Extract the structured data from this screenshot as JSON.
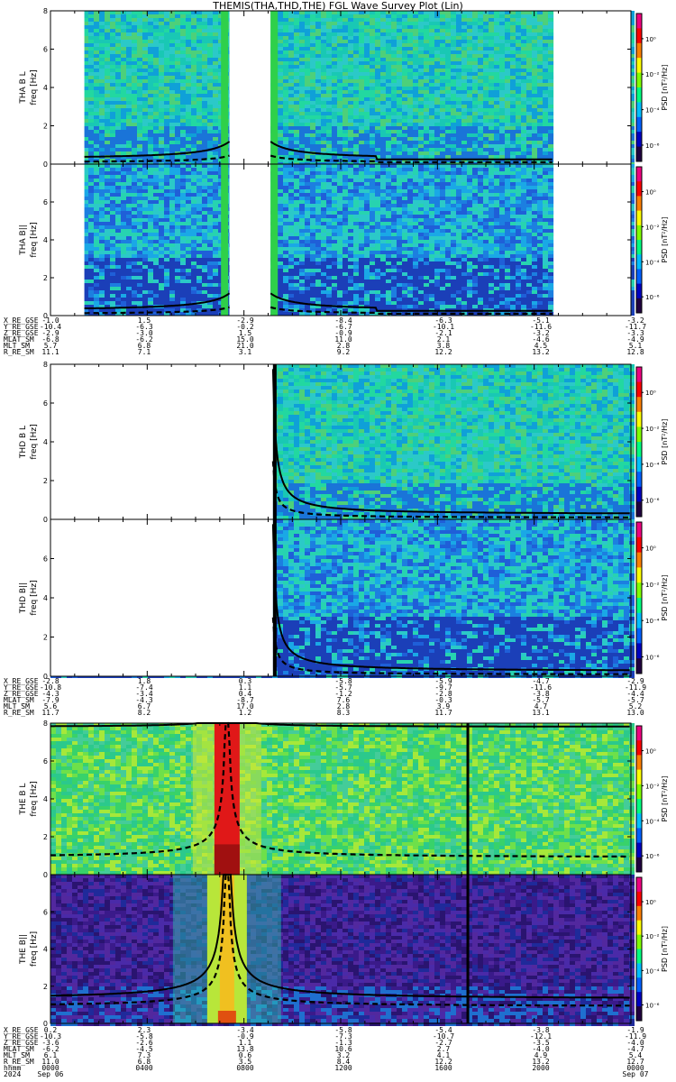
{
  "title": "THEMIS(THA,THD,THE) FGL Wave Survey Plot (Lin)",
  "colors": {
    "black_curve": "#000000"
  },
  "colorbar": {
    "label": "PSD [nT²/Hz]",
    "ticks": [
      "10⁰",
      "10⁻²",
      "10⁻⁴",
      "10⁻⁶"
    ]
  },
  "chart_data": [
    {
      "type": "heatmap",
      "probe": "THA",
      "panels": [
        {
          "name": "THA B L",
          "ylabel": "THA B L\nfreq [Hz]",
          "yticks": [
            0,
            2,
            4,
            6,
            8
          ],
          "ylim": [
            0,
            8
          ],
          "data_gaps_hours": [
            [
              0,
              1.4
            ],
            [
              7.4,
              9.1
            ],
            [
              20.8,
              24
            ]
          ],
          "base": "cyan-green"
        },
        {
          "name": "THA B||",
          "ylabel": "THA B||\nfreq [Hz]",
          "yticks": [
            0,
            2,
            4,
            6,
            8
          ],
          "ylim": [
            0,
            8
          ],
          "data_gaps_hours": [
            [
              0,
              1.4
            ],
            [
              7.4,
              9.1
            ],
            [
              20.8,
              24
            ]
          ],
          "base": "cyan-blue"
        }
      ],
      "xlim_hours": [
        0,
        24
      ],
      "ephemeris": {
        "labels": [
          "X_RE_GSE",
          "Y_RE_GSE",
          "Z_RE_GSE",
          "MLAT_SM",
          "MLT_SM",
          "R_RE_SM"
        ],
        "values": [
          [
            "-1.0",
            "1.5",
            "-2.9",
            "-8.4",
            "-6.3",
            "-5.1",
            "-3.2"
          ],
          [
            "-10.4",
            "-6.3",
            "-0.2",
            "-6.7",
            "-10.1",
            "-11.6",
            "-11.7"
          ],
          [
            "-2.9",
            "-3.0",
            "1.5",
            "-0.9",
            "-2.1",
            "-3.2",
            "-3.3"
          ],
          [
            "-6.8",
            "-6.2",
            "15.0",
            "11.0",
            "2.1",
            "-4.6",
            "-4.9"
          ],
          [
            "5.7",
            "6.8",
            "21.0",
            "2.8",
            "3.8",
            "4.5",
            "5.1"
          ],
          [
            "11.1",
            "7.1",
            "3.1",
            "9.2",
            "12.2",
            "13.2",
            "12.8"
          ]
        ]
      },
      "curves_note": "solid fc, dashed harmonics"
    },
    {
      "type": "heatmap",
      "probe": "THD",
      "panels": [
        {
          "name": "THD B L",
          "ylabel": "THD B L\nfreq [Hz]",
          "yticks": [
            0,
            2,
            4,
            6,
            8
          ],
          "ylim": [
            0,
            8
          ],
          "data_gaps_hours": [
            [
              0,
              9.2
            ]
          ],
          "base": "cyan-green"
        },
        {
          "name": "THD B||",
          "ylabel": "THD B||\nfreq [Hz]",
          "yticks": [
            0,
            2,
            4,
            6,
            8
          ],
          "ylim": [
            0,
            8
          ],
          "data_gaps_hours": [
            [
              0,
              9.2
            ]
          ],
          "base": "cyan-blue"
        }
      ],
      "xlim_hours": [
        0,
        24
      ],
      "ephemeris": {
        "labels": [
          "X_RE_GSE",
          "Y_RE_GSE",
          "Z_RE_GSE",
          "MLAT_SM",
          "MLT_SM",
          "R_RE_SM"
        ],
        "values": [
          [
            "-2.8",
            "1.8",
            "0.3",
            "-5.8",
            "-5.9",
            "-4.7",
            "-2.9"
          ],
          [
            "-10.8",
            "-7.4",
            "1.1",
            "-5.7",
            "-9.7",
            "-11.6",
            "-11.9"
          ],
          [
            "-4.3",
            "-3.4",
            "0.4",
            "-1.2",
            "-2.8",
            "-3.8",
            "-4.4"
          ],
          [
            "-7.9",
            "-4.3",
            "-8.7",
            "7.6",
            "-0.3",
            "-5.7",
            "-5.7"
          ],
          [
            "5.6",
            "6.7",
            "17.0",
            "2.8",
            "3.9",
            "4.7",
            "5.2"
          ],
          [
            "11.7",
            "8.2",
            "1.2",
            "8.3",
            "11.7",
            "13.1",
            "13.0"
          ]
        ]
      }
    },
    {
      "type": "heatmap",
      "probe": "THE",
      "panels": [
        {
          "name": "THE B L",
          "ylabel": "THE B L\nfreq [Hz]",
          "yticks": [
            0,
            2,
            4,
            6,
            8
          ],
          "ylim": [
            0,
            8
          ],
          "data_gaps_hours": [],
          "base": "green"
        },
        {
          "name": "THE B||",
          "ylabel": "THE B||\nfreq [Hz]",
          "yticks": [
            0,
            2,
            4,
            6,
            8
          ],
          "ylim": [
            0,
            8
          ],
          "data_gaps_hours": [],
          "base": "purple"
        }
      ],
      "xlim_hours": [
        0,
        24
      ],
      "xticks": [
        "0000",
        "0400",
        "0800",
        "1200",
        "1600",
        "2000",
        "0000"
      ],
      "ephemeris": {
        "labels": [
          "X_RE_GSE",
          "Y_RE_GSE",
          "Z_RE_GSE",
          "MLAT_SM",
          "MLT_SM",
          "R_RE_SM",
          "hhmm",
          "2024"
        ],
        "values": [
          [
            "0.2",
            "2.3",
            "-3.4",
            "-5.8",
            "-5.4",
            "-3.8",
            "-1.9"
          ],
          [
            "-10.3",
            "-5.8",
            "-0.9",
            "-7.3",
            "-10.7",
            "-12.1",
            "-11.9"
          ],
          [
            "-3.6",
            "-2.6",
            "1.1",
            "-1.3",
            "-2.7",
            "-3.5",
            "-4.0"
          ],
          [
            "-6.2",
            "-4.5",
            "13.8",
            "10.6",
            "2.7",
            "-4.0",
            "-4.7"
          ],
          [
            "6.1",
            "7.3",
            "0.6",
            "3.2",
            "4.1",
            "4.9",
            "5.4"
          ],
          [
            "11.0",
            "6.8",
            "3.5",
            "8.4",
            "12.2",
            "13.2",
            "12.7"
          ],
          [
            "0000",
            "0400",
            "0800",
            "1200",
            "1600",
            "2000",
            "0000"
          ],
          [
            "Sep 06",
            "",
            "",
            "",
            "",
            "",
            "Sep 07"
          ]
        ]
      }
    }
  ]
}
